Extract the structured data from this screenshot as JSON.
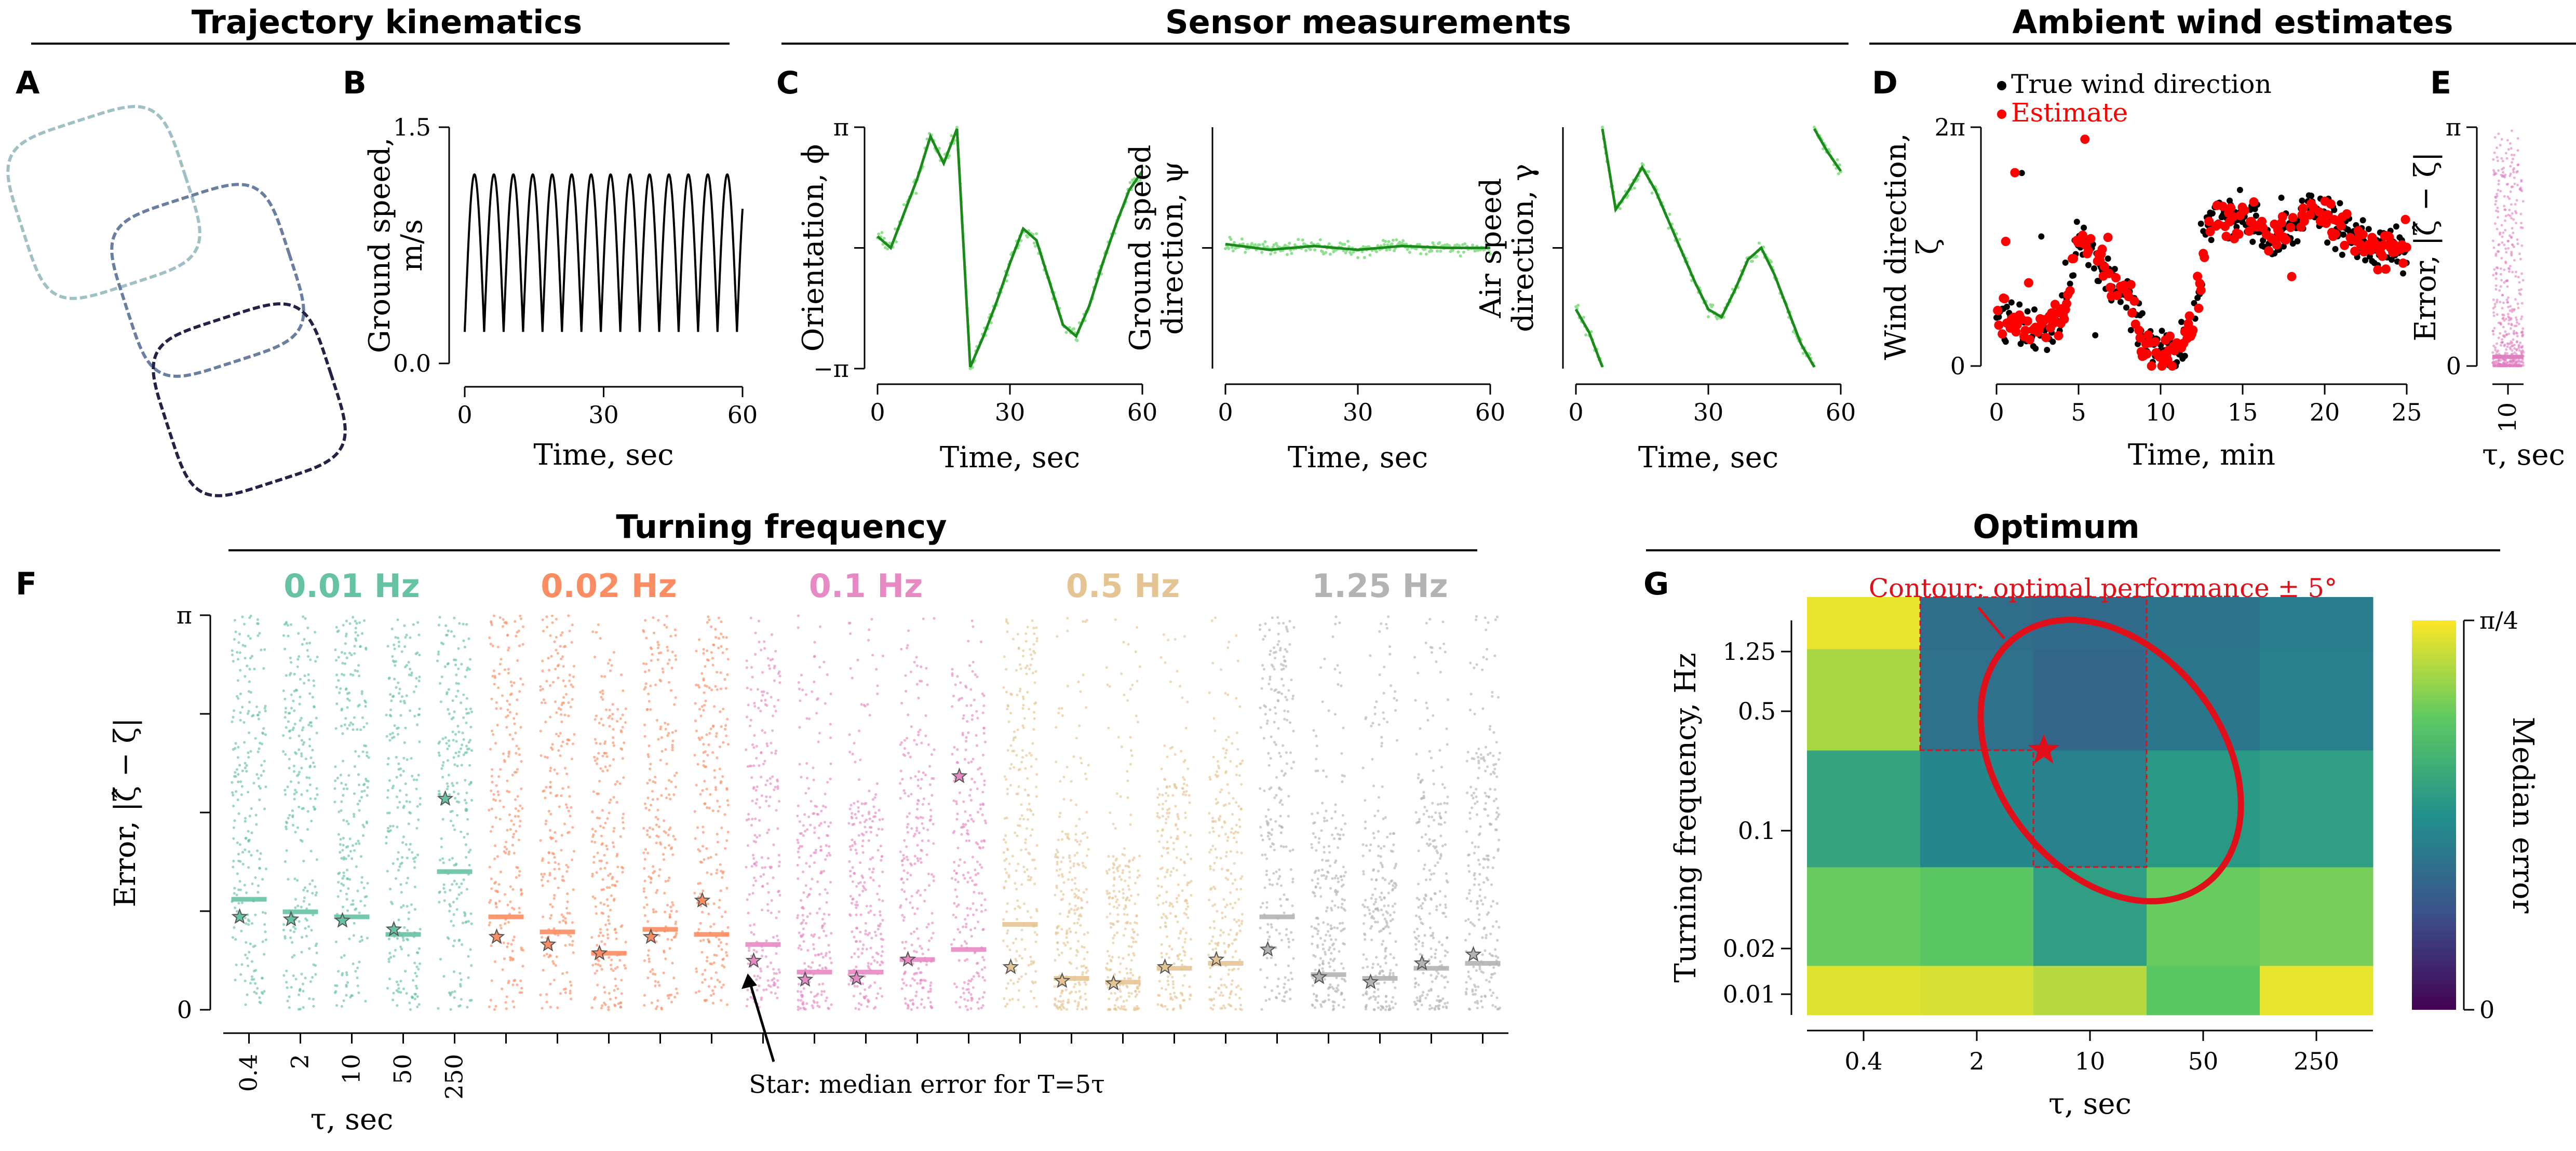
{
  "sections": {
    "trajectory": "Trajectory kinematics",
    "sensor": "Sensor measurements",
    "ambient": "Ambient wind estimates",
    "turning": "Turning frequency",
    "optimum": "Optimum"
  },
  "panels": {
    "A": "A",
    "B": "B",
    "C": "C",
    "D": "D",
    "E": "E",
    "F": "F",
    "G": "G"
  },
  "colors": {
    "trajectory_dark": "#222244",
    "trajectory_light": "#9fc0c4",
    "line_green": "#1a8a1a",
    "dots_green": "#8fe08f",
    "true_wind": "#000000",
    "estimate": "#ff0000",
    "error_pink": "#e07fc0",
    "freq_colors": [
      "#66c2a5",
      "#fc8d62",
      "#e78ac3",
      "#e5c494",
      "#b3b3b3"
    ]
  },
  "chart_data": [
    {
      "id": "B",
      "type": "line",
      "xlabel": "Time, sec",
      "ylabel": [
        "Ground speed,",
        "m/s"
      ],
      "xticks": [
        "0",
        "30",
        "60"
      ],
      "yticks": [
        "0.0",
        "1.5"
      ],
      "xlim": [
        0,
        60
      ],
      "ylim": [
        0,
        1.5
      ],
      "period_sec": 4.2,
      "min": 0.2,
      "max": 1.2
    },
    {
      "id": "C1",
      "type": "line",
      "xlabel": "Time, sec",
      "ylabel": "Orientation, ϕ",
      "xticks": [
        "0",
        "30",
        "60"
      ],
      "yticks": [
        "−π",
        "π"
      ],
      "xlim": [
        0,
        60
      ],
      "ylim": [
        -3.1416,
        3.1416
      ],
      "series": [
        {
          "x": [
            0,
            3,
            6,
            9,
            12,
            15,
            18,
            21,
            24,
            27,
            30,
            33,
            36,
            39,
            42,
            45,
            48,
            51,
            54,
            57,
            60
          ],
          "y": [
            0.3,
            0.0,
            0.9,
            1.8,
            2.9,
            2.2,
            3.1,
            -3.1,
            -2.3,
            -1.4,
            -0.4,
            0.5,
            0.2,
            -0.9,
            -2.0,
            -2.3,
            -1.5,
            -0.4,
            0.6,
            1.5,
            2.0
          ]
        }
      ]
    },
    {
      "id": "C2",
      "type": "line",
      "xlabel": "Time, sec",
      "ylabel": [
        "Ground speed",
        "direction, ψ"
      ],
      "xticks": [
        "0",
        "30",
        "60"
      ],
      "xlim": [
        0,
        60
      ],
      "ylim": [
        -3.1416,
        3.1416
      ],
      "series": [
        {
          "x": [
            0,
            10,
            20,
            30,
            40,
            50,
            60
          ],
          "y": [
            0.1,
            -0.05,
            0.05,
            -0.05,
            0.05,
            0.0,
            0.0
          ]
        }
      ]
    },
    {
      "id": "C3",
      "type": "line",
      "xlabel": "Time, sec",
      "ylabel": [
        "Air speed",
        "direction, γ"
      ],
      "xticks": [
        "0",
        "30",
        "60"
      ],
      "xlim": [
        0,
        60
      ],
      "ylim": [
        -3.1416,
        3.1416
      ],
      "series": [
        {
          "x": [
            0,
            3,
            6
          ],
          "y": [
            -1.6,
            -2.2,
            -3.1
          ]
        },
        {
          "x": [
            6,
            9,
            12,
            15,
            18,
            21,
            24,
            27,
            30,
            33,
            36,
            39,
            42,
            45,
            48,
            51,
            54
          ],
          "y": [
            3.1,
            1.0,
            1.5,
            2.1,
            1.5,
            0.7,
            -0.1,
            -0.9,
            -1.6,
            -1.8,
            -1.1,
            -0.3,
            0.0,
            -0.7,
            -1.6,
            -2.5,
            -3.1
          ]
        },
        {
          "x": [
            54,
            57,
            60
          ],
          "y": [
            3.1,
            2.5,
            2.0
          ]
        }
      ]
    },
    {
      "id": "D",
      "type": "scatter",
      "xlabel": "Time, min",
      "ylabel": [
        "Wind direction,",
        "ζ"
      ],
      "xticks": [
        "0",
        "5",
        "10",
        "15",
        "20",
        "25"
      ],
      "yticks": [
        "0",
        "2π"
      ],
      "xlim": [
        0,
        25
      ],
      "ylim": [
        0,
        6.2832
      ],
      "legend": [
        "True wind direction",
        "Estimate"
      ],
      "legend_position": "top-left",
      "series": [
        {
          "name": "True wind direction",
          "x": [
            0,
            1,
            2,
            3,
            4,
            5,
            6,
            7,
            8,
            9,
            10,
            11,
            12,
            13,
            14,
            15,
            16,
            17,
            18,
            19,
            20,
            21,
            22,
            23,
            24,
            25
          ],
          "y": [
            1.3,
            1.1,
            0.9,
            1.0,
            1.2,
            3.4,
            2.8,
            2.4,
            1.8,
            0.6,
            0.4,
            0.3,
            1.3,
            4.0,
            3.8,
            4.0,
            3.6,
            3.2,
            3.6,
            4.2,
            4.1,
            3.5,
            3.4,
            3.1,
            3.3,
            3.0
          ]
        },
        {
          "name": "Estimate",
          "x": [
            0,
            1,
            2,
            3,
            4,
            5,
            6,
            7,
            8,
            9,
            10,
            11,
            12,
            13,
            14,
            15,
            16,
            17,
            18,
            19,
            20,
            21,
            22,
            23,
            24,
            25
          ],
          "y": [
            1.3,
            1.2,
            0.9,
            1.1,
            1.3,
            3.3,
            2.9,
            2.3,
            1.9,
            0.5,
            0.4,
            0.4,
            1.2,
            3.9,
            3.8,
            3.9,
            3.6,
            3.3,
            3.7,
            4.1,
            4.0,
            3.6,
            3.4,
            3.1,
            3.2,
            3.0
          ]
        }
      ]
    },
    {
      "id": "E",
      "type": "scatter",
      "xlabel": "τ, sec",
      "ylabel": "Error, |ζ̂ − ζ|",
      "xticks": [
        "10"
      ],
      "yticks": [
        "0",
        "π"
      ],
      "ylim": [
        0,
        3.1416
      ],
      "median": 0.12
    },
    {
      "id": "F",
      "type": "scatter",
      "ylabel": "Error, |ζ̂ − ζ|",
      "xlabel": "τ, sec",
      "yticks": [
        "0",
        "π"
      ],
      "ylim": [
        0,
        3.1416
      ],
      "tau_labels": [
        "0.4",
        "2",
        "10",
        "50",
        "250"
      ],
      "annotation": "Star: median error for T=5τ",
      "groups": [
        {
          "name": "0.01 Hz",
          "medians": [
            0.88,
            0.78,
            0.74,
            0.6,
            1.1
          ],
          "stars": [
            0.74,
            0.72,
            0.71,
            0.64,
            1.68
          ]
        },
        {
          "name": "0.02 Hz",
          "medians": [
            0.74,
            0.62,
            0.45,
            0.64,
            0.6
          ],
          "stars": [
            0.58,
            0.52,
            0.45,
            0.58,
            0.87
          ]
        },
        {
          "name": "0.1 Hz",
          "medians": [
            0.52,
            0.3,
            0.3,
            0.4,
            0.48
          ],
          "stars": [
            0.39,
            0.24,
            0.25,
            0.4,
            1.86
          ]
        },
        {
          "name": "0.5 Hz",
          "medians": [
            0.68,
            0.25,
            0.22,
            0.33,
            0.37
          ],
          "stars": [
            0.34,
            0.23,
            0.21,
            0.34,
            0.4
          ]
        },
        {
          "name": "1.25 Hz",
          "medians": [
            0.74,
            0.28,
            0.25,
            0.33,
            0.37
          ],
          "stars": [
            0.48,
            0.26,
            0.22,
            0.37,
            0.44
          ]
        }
      ]
    },
    {
      "id": "G",
      "type": "heatmap",
      "xlabel": "τ, sec",
      "ylabel": "Turning frequency, Hz",
      "x_categories": [
        "0.4",
        "2",
        "10",
        "50",
        "250"
      ],
      "y_categories": [
        "0.01",
        "0.02",
        "0.1",
        "0.5",
        "1.25"
      ],
      "colorbar_label": "Median error",
      "colorbar_ticks": [
        "0",
        "π/4"
      ],
      "vmin": 0,
      "vmax": 0.7854,
      "values": [
        [
          0.75,
          0.74,
          0.7,
          0.58,
          0.76
        ],
        [
          0.6,
          0.58,
          0.44,
          0.6,
          0.62
        ],
        [
          0.46,
          0.36,
          0.34,
          0.42,
          0.44
        ],
        [
          0.68,
          0.29,
          0.26,
          0.31,
          0.34
        ],
        [
          0.76,
          0.28,
          0.27,
          0.3,
          0.33
        ]
      ],
      "optimum": {
        "x": "10",
        "y": "0.5"
      },
      "annotation": "Contour: optimal performance ± 5°"
    }
  ]
}
